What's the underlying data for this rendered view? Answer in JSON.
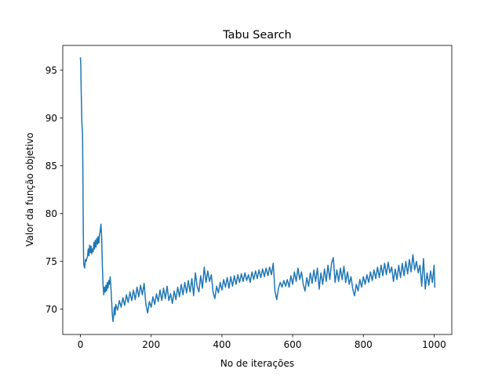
{
  "chart_data": {
    "type": "line",
    "title": "Tabu Search",
    "xlabel": "No de iterações",
    "ylabel": "Valor da função objetivo",
    "xlim": [
      -50,
      1050
    ],
    "ylim": [
      67.35,
      97.6
    ],
    "xticks": [
      0,
      200,
      400,
      600,
      800,
      1000
    ],
    "yticks": [
      70,
      75,
      80,
      85,
      90,
      95
    ],
    "grid": false,
    "legend": "none",
    "series": [
      {
        "color": "#1f77b4",
        "points": [
          [
            0,
            96.3
          ],
          [
            1,
            95.6
          ],
          [
            2,
            93.1
          ],
          [
            3,
            91.4
          ],
          [
            4,
            89.6
          ],
          [
            5,
            88.9
          ],
          [
            6,
            88.4
          ],
          [
            7,
            84.0
          ],
          [
            8,
            78.5
          ],
          [
            9,
            75.0
          ],
          [
            10,
            74.6
          ],
          [
            12,
            74.3
          ],
          [
            14,
            75.2
          ],
          [
            16,
            75.0
          ],
          [
            18,
            75.3
          ],
          [
            20,
            75.5
          ],
          [
            22,
            76.3
          ],
          [
            24,
            75.6
          ],
          [
            26,
            76.7
          ],
          [
            28,
            75.9
          ],
          [
            30,
            76.6
          ],
          [
            32,
            75.8
          ],
          [
            34,
            76.3
          ],
          [
            36,
            76.0
          ],
          [
            38,
            77.0
          ],
          [
            40,
            76.3
          ],
          [
            42,
            77.2
          ],
          [
            44,
            76.5
          ],
          [
            46,
            77.4
          ],
          [
            48,
            76.8
          ],
          [
            50,
            77.6
          ],
          [
            52,
            76.9
          ],
          [
            54,
            77.8
          ],
          [
            56,
            78.2
          ],
          [
            58,
            78.9
          ],
          [
            60,
            77.5
          ],
          [
            62,
            74.5
          ],
          [
            64,
            72.5
          ],
          [
            66,
            71.5
          ],
          [
            68,
            72.3
          ],
          [
            70,
            71.8
          ],
          [
            72,
            72.5
          ],
          [
            74,
            71.9
          ],
          [
            76,
            72.8
          ],
          [
            78,
            72.2
          ],
          [
            80,
            73.0
          ],
          [
            82,
            72.6
          ],
          [
            84,
            73.4
          ],
          [
            86,
            72.4
          ],
          [
            88,
            71.0
          ],
          [
            90,
            69.5
          ],
          [
            92,
            68.7
          ],
          [
            94,
            69.3
          ],
          [
            96,
            70.2
          ],
          [
            98,
            69.4
          ],
          [
            100,
            70.5
          ],
          [
            105,
            69.9
          ],
          [
            110,
            70.9
          ],
          [
            115,
            70.2
          ],
          [
            120,
            71.2
          ],
          [
            125,
            70.4
          ],
          [
            130,
            71.5
          ],
          [
            135,
            70.7
          ],
          [
            140,
            71.8
          ],
          [
            145,
            70.9
          ],
          [
            150,
            72.0
          ],
          [
            155,
            71.0
          ],
          [
            160,
            72.3
          ],
          [
            165,
            71.3
          ],
          [
            170,
            72.5
          ],
          [
            175,
            71.5
          ],
          [
            180,
            72.7
          ],
          [
            185,
            70.5
          ],
          [
            190,
            69.6
          ],
          [
            195,
            70.8
          ],
          [
            200,
            70.2
          ],
          [
            205,
            71.3
          ],
          [
            210,
            70.5
          ],
          [
            215,
            71.6
          ],
          [
            220,
            70.8
          ],
          [
            225,
            72.0
          ],
          [
            230,
            70.9
          ],
          [
            235,
            72.2
          ],
          [
            240,
            71.1
          ],
          [
            245,
            72.4
          ],
          [
            250,
            70.9
          ],
          [
            255,
            71.6
          ],
          [
            260,
            70.6
          ],
          [
            265,
            71.9
          ],
          [
            270,
            71.0
          ],
          [
            275,
            72.3
          ],
          [
            280,
            71.3
          ],
          [
            285,
            72.6
          ],
          [
            290,
            71.5
          ],
          [
            295,
            72.8
          ],
          [
            300,
            71.7
          ],
          [
            305,
            73.0
          ],
          [
            310,
            71.8
          ],
          [
            315,
            73.2
          ],
          [
            320,
            71.4
          ],
          [
            325,
            73.8
          ],
          [
            330,
            72.4
          ],
          [
            335,
            71.8
          ],
          [
            340,
            73.5
          ],
          [
            345,
            72.2
          ],
          [
            350,
            74.4
          ],
          [
            355,
            72.8
          ],
          [
            360,
            74.0
          ],
          [
            365,
            72.9
          ],
          [
            370,
            73.6
          ],
          [
            375,
            71.8
          ],
          [
            380,
            71.1
          ],
          [
            385,
            72.4
          ],
          [
            390,
            71.7
          ],
          [
            395,
            72.8
          ],
          [
            400,
            72.0
          ],
          [
            405,
            73.1
          ],
          [
            410,
            72.3
          ],
          [
            415,
            73.3
          ],
          [
            420,
            72.2
          ],
          [
            425,
            73.4
          ],
          [
            430,
            72.4
          ],
          [
            435,
            73.5
          ],
          [
            440,
            72.6
          ],
          [
            445,
            73.6
          ],
          [
            450,
            72.8
          ],
          [
            455,
            73.7
          ],
          [
            460,
            72.9
          ],
          [
            465,
            73.8
          ],
          [
            470,
            73.0
          ],
          [
            475,
            73.6
          ],
          [
            480,
            72.8
          ],
          [
            485,
            73.9
          ],
          [
            490,
            73.1
          ],
          [
            495,
            74.0
          ],
          [
            500,
            73.2
          ],
          [
            505,
            74.1
          ],
          [
            510,
            73.3
          ],
          [
            515,
            74.2
          ],
          [
            520,
            73.4
          ],
          [
            525,
            74.3
          ],
          [
            530,
            73.5
          ],
          [
            535,
            74.4
          ],
          [
            540,
            73.6
          ],
          [
            545,
            74.8
          ],
          [
            550,
            71.9
          ],
          [
            555,
            71.0
          ],
          [
            560,
            72.2
          ],
          [
            565,
            72.8
          ],
          [
            570,
            72.3
          ],
          [
            575,
            73.0
          ],
          [
            580,
            72.4
          ],
          [
            585,
            73.1
          ],
          [
            590,
            72.3
          ],
          [
            595,
            73.5
          ],
          [
            600,
            72.6
          ],
          [
            605,
            73.9
          ],
          [
            610,
            72.9
          ],
          [
            615,
            74.3
          ],
          [
            620,
            73.1
          ],
          [
            625,
            73.9
          ],
          [
            630,
            72.6
          ],
          [
            635,
            71.9
          ],
          [
            640,
            73.3
          ],
          [
            645,
            72.4
          ],
          [
            650,
            73.8
          ],
          [
            655,
            72.7
          ],
          [
            660,
            74.1
          ],
          [
            665,
            72.9
          ],
          [
            670,
            74.3
          ],
          [
            675,
            72.1
          ],
          [
            680,
            73.8
          ],
          [
            685,
            72.6
          ],
          [
            690,
            74.2
          ],
          [
            695,
            72.9
          ],
          [
            700,
            74.6
          ],
          [
            705,
            73.1
          ],
          [
            710,
            74.8
          ],
          [
            715,
            75.4
          ],
          [
            720,
            72.8
          ],
          [
            725,
            74.1
          ],
          [
            730,
            72.9
          ],
          [
            735,
            74.3
          ],
          [
            740,
            73.1
          ],
          [
            745,
            74.5
          ],
          [
            750,
            72.8
          ],
          [
            755,
            73.9
          ],
          [
            760,
            72.6
          ],
          [
            765,
            73.4
          ],
          [
            770,
            72.1
          ],
          [
            775,
            71.4
          ],
          [
            780,
            72.6
          ],
          [
            785,
            71.9
          ],
          [
            790,
            73.1
          ],
          [
            795,
            72.3
          ],
          [
            800,
            73.4
          ],
          [
            805,
            72.6
          ],
          [
            810,
            73.6
          ],
          [
            815,
            72.8
          ],
          [
            820,
            73.9
          ],
          [
            825,
            73.0
          ],
          [
            830,
            74.1
          ],
          [
            835,
            73.2
          ],
          [
            840,
            74.4
          ],
          [
            845,
            73.3
          ],
          [
            850,
            74.6
          ],
          [
            855,
            73.5
          ],
          [
            860,
            74.8
          ],
          [
            865,
            73.6
          ],
          [
            870,
            74.9
          ],
          [
            875,
            73.8
          ],
          [
            880,
            74.4
          ],
          [
            885,
            72.9
          ],
          [
            890,
            74.2
          ],
          [
            895,
            73.1
          ],
          [
            900,
            74.6
          ],
          [
            905,
            73.3
          ],
          [
            910,
            74.8
          ],
          [
            915,
            73.5
          ],
          [
            920,
            75.0
          ],
          [
            925,
            73.7
          ],
          [
            930,
            75.2
          ],
          [
            935,
            73.9
          ],
          [
            940,
            75.7
          ],
          [
            945,
            74.1
          ],
          [
            950,
            75.0
          ],
          [
            955,
            73.8
          ],
          [
            960,
            74.6
          ],
          [
            965,
            72.4
          ],
          [
            970,
            75.3
          ],
          [
            975,
            72.1
          ],
          [
            980,
            73.8
          ],
          [
            985,
            72.5
          ],
          [
            990,
            74.0
          ],
          [
            995,
            72.8
          ],
          [
            1000,
            74.6
          ],
          [
            1002,
            72.3
          ]
        ]
      }
    ]
  }
}
